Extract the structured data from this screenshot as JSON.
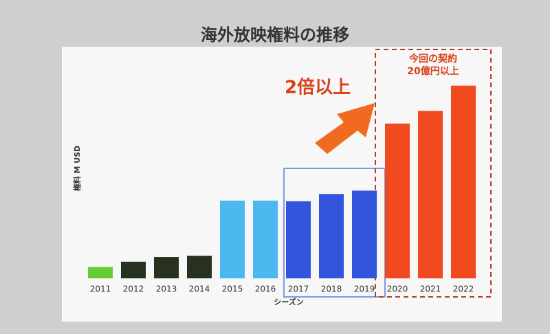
{
  "chart_data": {
    "type": "bar",
    "title": "海外放映権料の推移",
    "y_label": "権料 M USD",
    "x_label": "シーズン",
    "annotations": [
      "2倍以上",
      "今回の契約",
      "20億円以上"
    ],
    "categories": [
      "2011",
      "2012",
      "2013",
      "2014",
      "2015",
      "2016",
      "2017",
      "2018",
      "2019",
      "2020",
      "2021",
      "2022"
    ],
    "values": [
      17,
      25,
      32,
      34,
      117,
      117,
      116,
      127,
      132,
      233,
      252,
      290
    ],
    "colors": [
      "#66cc33",
      "#28301f",
      "#28301f",
      "#28301f",
      "#4cb8f0",
      "#4cb8f0",
      "#3355dd",
      "#3355dd",
      "#3355dd",
      "#f04a1e",
      "#f04a1e",
      "#f04a1e"
    ],
    "ylim": [
      0,
      300
    ]
  }
}
